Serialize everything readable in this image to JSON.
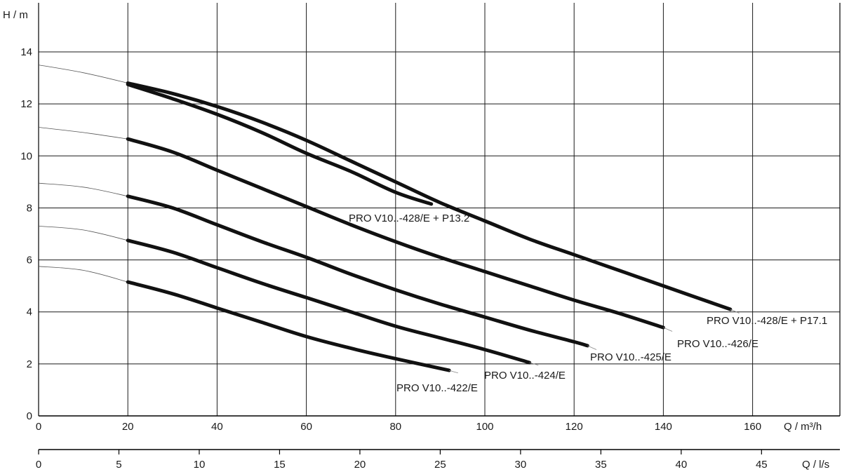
{
  "chart_data": {
    "type": "line",
    "ylabel": "H / m",
    "xlabel": "Q / m³/h",
    "x2label": "Q / l/s",
    "xlim": [
      0,
      160
    ],
    "ylim": [
      0,
      14
    ],
    "xticks": [
      0,
      20,
      40,
      60,
      80,
      100,
      120,
      140,
      160
    ],
    "yticks": [
      0,
      2,
      4,
      6,
      8,
      10,
      12,
      14
    ],
    "x2lim": [
      0,
      45
    ],
    "x2ticks": [
      0,
      5,
      10,
      15,
      20,
      25,
      30,
      35,
      40,
      45
    ],
    "grid": true,
    "series": [
      {
        "name": "PRO V10..-428/E + P17.1",
        "extrapolated": [
          [
            0,
            13.5
          ],
          [
            10,
            13.2
          ],
          [
            20,
            12.8
          ]
        ],
        "values": [
          [
            20,
            12.8
          ],
          [
            30,
            12.4
          ],
          [
            40,
            11.9
          ],
          [
            50,
            11.3
          ],
          [
            60,
            10.6
          ],
          [
            70,
            9.8
          ],
          [
            80,
            9.0
          ],
          [
            90,
            8.2
          ],
          [
            100,
            7.5
          ],
          [
            110,
            6.8
          ],
          [
            120,
            6.2
          ],
          [
            130,
            5.6
          ],
          [
            140,
            5.0
          ],
          [
            155,
            4.1
          ]
        ],
        "tail": [
          [
            155,
            4.1
          ],
          [
            157,
            3.95
          ]
        ]
      },
      {
        "name": "PRO V10..-428/E + P13.2",
        "extrapolated": [],
        "values": [
          [
            20,
            12.75
          ],
          [
            30,
            12.2
          ],
          [
            40,
            11.6
          ],
          [
            50,
            10.9
          ],
          [
            60,
            10.1
          ],
          [
            70,
            9.4
          ],
          [
            80,
            8.6
          ],
          [
            88,
            8.15
          ]
        ],
        "tail": []
      },
      {
        "name": "PRO V10..-426/E",
        "extrapolated": [
          [
            0,
            11.1
          ],
          [
            10,
            10.9
          ],
          [
            20,
            10.65
          ]
        ],
        "values": [
          [
            20,
            10.65
          ],
          [
            30,
            10.15
          ],
          [
            40,
            9.45
          ],
          [
            50,
            8.75
          ],
          [
            60,
            8.05
          ],
          [
            70,
            7.35
          ],
          [
            80,
            6.7
          ],
          [
            90,
            6.1
          ],
          [
            100,
            5.55
          ],
          [
            110,
            5.0
          ],
          [
            120,
            4.45
          ],
          [
            130,
            3.95
          ],
          [
            140,
            3.4
          ]
        ],
        "tail": [
          [
            140,
            3.4
          ],
          [
            142,
            3.25
          ]
        ]
      },
      {
        "name": "PRO V10..-425/E",
        "extrapolated": [
          [
            0,
            8.95
          ],
          [
            10,
            8.8
          ],
          [
            20,
            8.45
          ]
        ],
        "values": [
          [
            20,
            8.45
          ],
          [
            30,
            8.0
          ],
          [
            40,
            7.35
          ],
          [
            50,
            6.7
          ],
          [
            60,
            6.1
          ],
          [
            70,
            5.45
          ],
          [
            80,
            4.85
          ],
          [
            90,
            4.3
          ],
          [
            100,
            3.8
          ],
          [
            110,
            3.3
          ],
          [
            120,
            2.85
          ],
          [
            123,
            2.7
          ]
        ],
        "tail": [
          [
            123,
            2.7
          ],
          [
            125,
            2.55
          ]
        ]
      },
      {
        "name": "PRO V10..-424/E",
        "extrapolated": [
          [
            0,
            7.3
          ],
          [
            10,
            7.15
          ],
          [
            20,
            6.75
          ]
        ],
        "values": [
          [
            20,
            6.75
          ],
          [
            30,
            6.3
          ],
          [
            40,
            5.7
          ],
          [
            50,
            5.1
          ],
          [
            60,
            4.55
          ],
          [
            70,
            4.0
          ],
          [
            80,
            3.45
          ],
          [
            90,
            3.0
          ],
          [
            100,
            2.55
          ],
          [
            110,
            2.05
          ]
        ],
        "tail": [
          [
            110,
            2.05
          ],
          [
            112,
            1.95
          ]
        ]
      },
      {
        "name": "PRO V10..-422/E",
        "extrapolated": [
          [
            0,
            5.75
          ],
          [
            10,
            5.6
          ],
          [
            20,
            5.15
          ]
        ],
        "values": [
          [
            20,
            5.15
          ],
          [
            30,
            4.7
          ],
          [
            40,
            4.15
          ],
          [
            50,
            3.6
          ],
          [
            60,
            3.05
          ],
          [
            70,
            2.6
          ],
          [
            80,
            2.2
          ],
          [
            92,
            1.75
          ]
        ],
        "tail": [
          [
            92,
            1.75
          ],
          [
            94,
            1.65
          ]
        ]
      }
    ]
  }
}
